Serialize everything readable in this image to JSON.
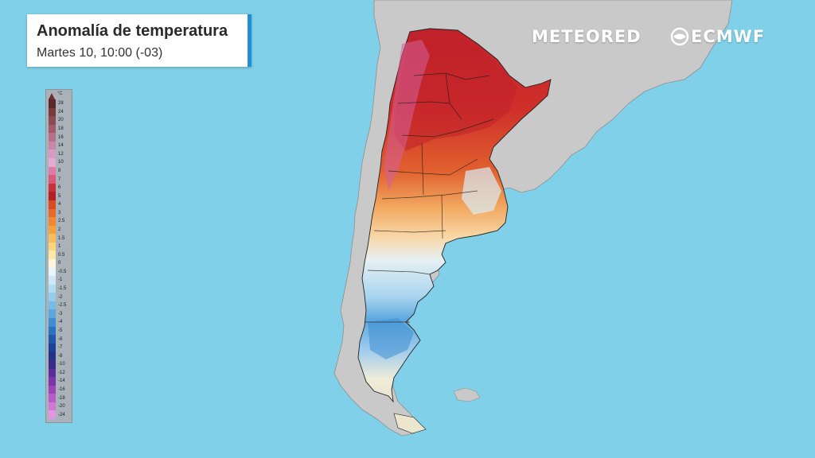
{
  "header": {
    "title": "Anomalía de temperatura",
    "subtitle": "Martes 10, 10:00 (-03)"
  },
  "brands": {
    "meteored": "METEORED",
    "ecmwf": "ECMWF"
  },
  "legend": {
    "unit": "°C",
    "labels": [
      "28",
      "24",
      "20",
      "18",
      "16",
      "14",
      "12",
      "10",
      "8",
      "7",
      "6",
      "5",
      "4",
      "3",
      "2.5",
      "2",
      "1.5",
      "1",
      "0.5",
      "0",
      "-0.5",
      "-1",
      "-1.5",
      "-2",
      "-2.5",
      "-3",
      "-4",
      "-5",
      "-6",
      "-7",
      "-8",
      "-10",
      "-12",
      "-14",
      "-16",
      "-18",
      "-20",
      "-24"
    ],
    "colors": [
      "#5a2a2a",
      "#7a3a3a",
      "#8c4a55",
      "#a45a6a",
      "#b8708a",
      "#c887a8",
      "#d79ac0",
      "#e2acd0",
      "#e07aa8",
      "#d85a7a",
      "#c8303a",
      "#b42020",
      "#d84a20",
      "#e86a2a",
      "#f0882e",
      "#f5a23a",
      "#f8bc58",
      "#fbd47c",
      "#fde8a8",
      "#fff6da",
      "#e8f4fa",
      "#cde8f6",
      "#b2dcf2",
      "#94ccec",
      "#76bce6",
      "#5aa8de",
      "#3f8ed2",
      "#2a72c2",
      "#1e58ae",
      "#1a4298",
      "#243288",
      "#3a2c8c",
      "#5a2e9a",
      "#7a36a8",
      "#9a44b8",
      "#b65cc8",
      "#cf78d6",
      "#e296e2"
    ]
  },
  "colors": {
    "ocean": "#7fd0e8",
    "land": "#c9c9c9",
    "accent": "#1f8fd6"
  }
}
